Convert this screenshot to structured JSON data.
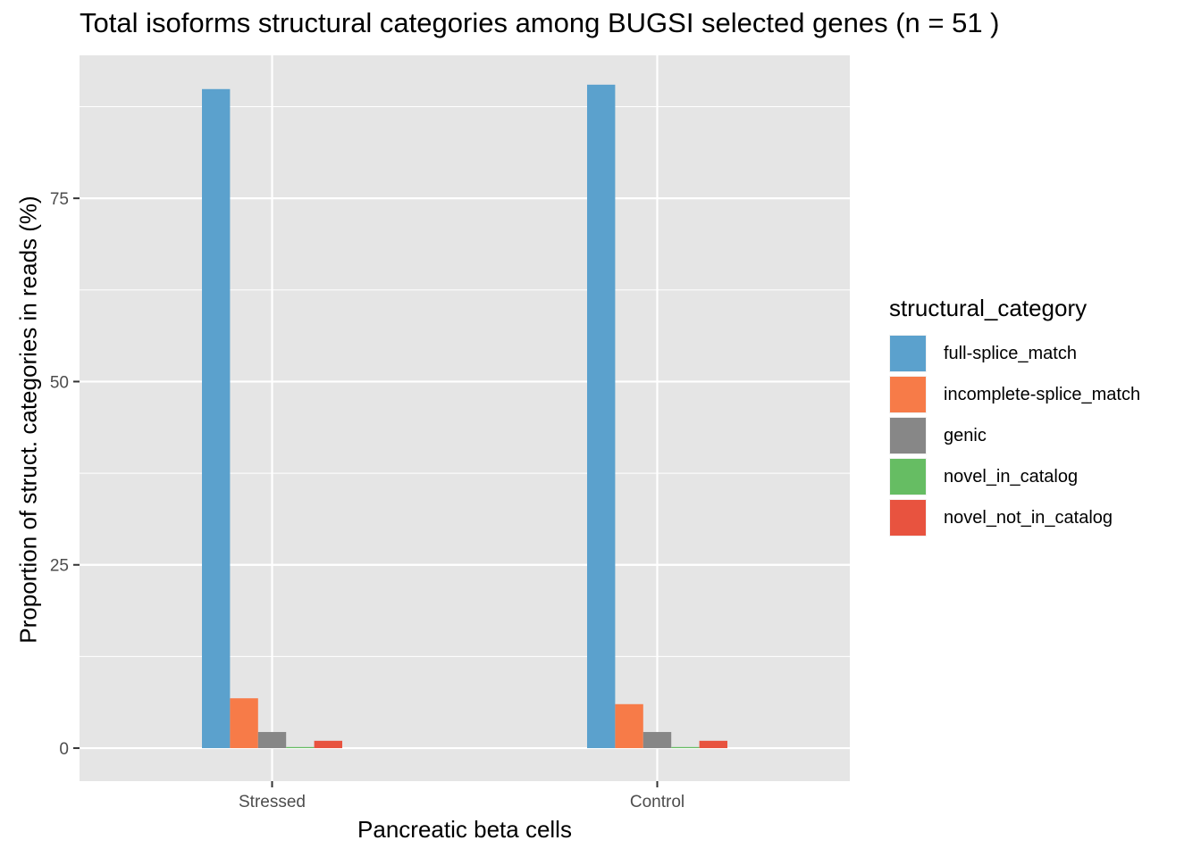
{
  "chart_data": {
    "type": "bar",
    "title": "Total isoforms structural categories among BUGSI selected genes (n = 51 )",
    "xlabel": "Pancreatic beta cells",
    "ylabel": "Proportion of struct. categories in reads (%)",
    "categories": [
      "Stressed",
      "Control"
    ],
    "ylim": [
      -4.5,
      94.5
    ],
    "yticks": [
      0,
      25,
      50,
      75
    ],
    "grid": true,
    "legend_title": "structural_category",
    "legend_position": "right",
    "series": [
      {
        "name": "full-splice_match",
        "color": "#5ba1cd",
        "values": [
          89.9,
          90.5
        ]
      },
      {
        "name": "incomplete-splice_match",
        "color": "#f77b48",
        "values": [
          6.8,
          6.0
        ]
      },
      {
        "name": "genic",
        "color": "#878787",
        "values": [
          2.2,
          2.2
        ]
      },
      {
        "name": "novel_in_catalog",
        "color": "#66bd63",
        "values": [
          0.15,
          0.15
        ]
      },
      {
        "name": "novel_not_in_catalog",
        "color": "#e8533f",
        "values": [
          1.0,
          1.0
        ]
      }
    ]
  }
}
